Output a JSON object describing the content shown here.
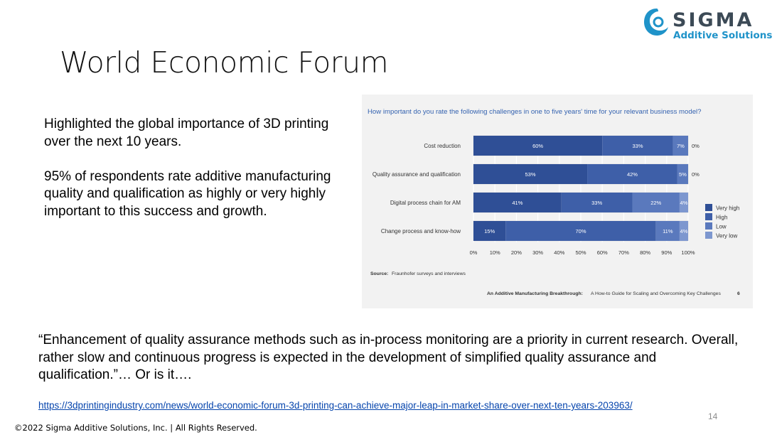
{
  "logo": {
    "name": "SIGMA",
    "subtitle": "Additive Solutions"
  },
  "slide": {
    "title": "World Economic Forum",
    "paragraph1": "Highlighted the global importance of 3D printing over the next 10 years.",
    "paragraph2": "95% of respondents rate additive manufacturing quality and qualification as highly or very highly important to this success and growth.",
    "quote": "“Enhancement of quality assurance methods such as in-process monitoring are a priority in current research.  Overall, rather slow and continuous progress is expected in the development of simplified quality assurance and qualification.”… Or is it….",
    "link": "https://3dprintingindustry.com/news/world-economic-forum-3d-printing-can-achieve-major-leap-in-market-share-over-next-ten-years-203963/",
    "page_number": "14",
    "copyright": "©2022 Sigma Additive Solutions, Inc. | All Rights Reserved."
  },
  "chart_data": {
    "type": "bar",
    "stacked": true,
    "orientation": "horizontal",
    "title": "How important do you rate the following challenges in one to five years' time for your relevant business model?",
    "categories": [
      "Cost reduction",
      "Quality assurance and qualification",
      "Digital process chain for AM",
      "Change process and know-how"
    ],
    "series": [
      {
        "name": "Very high",
        "color": "#2f4f96",
        "values": [
          60,
          53,
          41,
          15
        ]
      },
      {
        "name": "High",
        "color": "#3e5fa8",
        "values": [
          33,
          42,
          33,
          70
        ]
      },
      {
        "name": "Low",
        "color": "#5a79bd",
        "values": [
          7,
          5,
          22,
          11
        ]
      },
      {
        "name": "Very low",
        "color": "#7d97cf",
        "values": [
          0,
          0,
          4,
          4
        ]
      }
    ],
    "data_labels": [
      [
        "60%",
        "33%",
        "7%",
        "0%"
      ],
      [
        "53%",
        "42%",
        "5%",
        "0%"
      ],
      [
        "41%",
        "33%",
        "22%",
        "4%"
      ],
      [
        "15%",
        "70%",
        "11%",
        "4%"
      ]
    ],
    "x_ticks": [
      "0%",
      "10%",
      "20%",
      "30%",
      "40%",
      "50%",
      "60%",
      "70%",
      "80%",
      "90%",
      "100%"
    ],
    "xlim": [
      0,
      100
    ],
    "legend_position": "right",
    "source_label": "Source:",
    "source_text": "Fraunhofer surveys and interviews",
    "footer_bold": "An Additive Manufacturing Breakthrough:",
    "footer_text": "A How-to Guide for Scaling and Overcoming Key Challenges",
    "footer_page": "6",
    "title_color": "#3563b0"
  }
}
